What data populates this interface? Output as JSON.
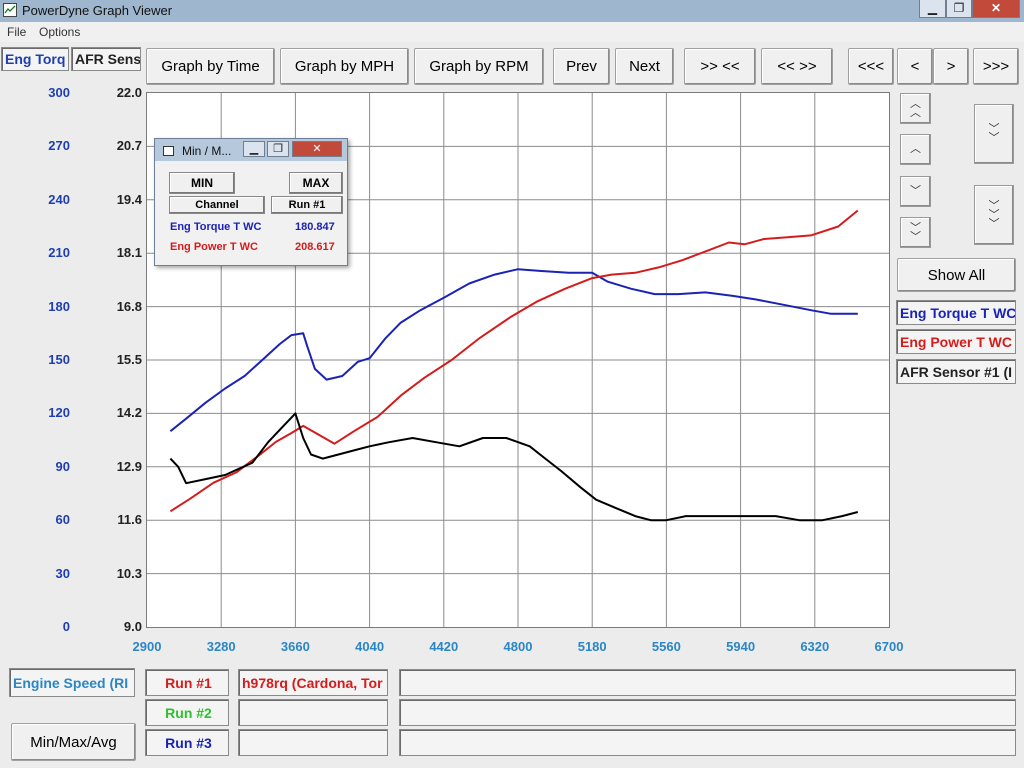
{
  "window": {
    "title": "PowerDyne Graph Viewer",
    "minimize": "▁",
    "restore": "❐",
    "close": "✕"
  },
  "menu": {
    "file": "File",
    "options": "Options"
  },
  "left_labels": {
    "eng_torq": "Eng Torq",
    "afr_sens": "AFR Sens"
  },
  "toolbar": {
    "graph_by_time": "Graph by Time",
    "graph_by_mph": "Graph by MPH",
    "graph_by_rpm": "Graph by RPM",
    "prev": "Prev",
    "next": "Next",
    "zoom_in": ">> <<",
    "zoom_out": "<< >>",
    "scroll_far_left": "<<<",
    "scroll_left": "<",
    "scroll_right": ">",
    "scroll_far_right": ">>>"
  },
  "right_panel": {
    "show_all": "Show All",
    "channels": [
      "Eng Torque T WC",
      "Eng Power T WC",
      "AFR Sensor #1 (I"
    ],
    "scroll_icons": [
      "double-up-chevron-icon",
      "up-chevron-icon",
      "down-chevron-icon",
      "double-down-chevron-icon"
    ]
  },
  "bottom": {
    "x_channel": "Engine Speed (RI",
    "run1": "Run #1",
    "run2": "Run #2",
    "run3": "Run #3",
    "run1_name": "h978rq (Cardona, Tor",
    "minmaxavg": "Min/Max/Avg"
  },
  "minmax_popup": {
    "title": "Min / M...",
    "min_label": "MIN",
    "max_label": "MAX",
    "channel_header": "Channel",
    "run_header": "Run #1",
    "rows": [
      {
        "channel": "Eng Torque T WC",
        "value": "180.847"
      },
      {
        "channel": "Eng Power T WC",
        "value": "208.617"
      }
    ]
  },
  "colors": {
    "torque": "#1a23b4",
    "power": "#d41c1c",
    "afr": "#000000",
    "tick_blue": "#1f3fb0",
    "tick_x": "#2a86c4",
    "run2": "#2ec02e"
  },
  "chart_data": {
    "type": "line",
    "x_ticks": [
      "2900",
      "3280",
      "3660",
      "4040",
      "4420",
      "4800",
      "5180",
      "5560",
      "5940",
      "6320",
      "6700"
    ],
    "xlim": [
      2900,
      6700
    ],
    "y_left_ticks": [
      "300",
      "270",
      "240",
      "210",
      "180",
      "150",
      "120",
      "90",
      "60",
      "30",
      "0"
    ],
    "y_left_lim": [
      0,
      300
    ],
    "y_right_ticks": [
      "22.0",
      "20.7",
      "19.4",
      "18.1",
      "16.8",
      "15.5",
      "14.2",
      "12.9",
      "11.6",
      "10.3",
      "9.0"
    ],
    "y_right_lim": [
      9.0,
      22.0
    ],
    "grid": true,
    "series": [
      {
        "name": "Eng Torque T WC",
        "axis": "left",
        "x": [
          3020,
          3100,
          3200,
          3300,
          3400,
          3500,
          3580,
          3640,
          3700,
          3720,
          3760,
          3820,
          3900,
          3980,
          4040,
          4120,
          4200,
          4300,
          4420,
          4550,
          4680,
          4800,
          4920,
          5060,
          5180,
          5260,
          5380,
          5500,
          5620,
          5760,
          5900,
          6020,
          6160,
          6300,
          6400,
          6540
        ],
        "y": [
          110,
          117,
          126,
          134,
          141,
          151,
          159,
          164,
          165,
          158,
          145,
          139,
          141,
          149,
          151,
          162,
          171,
          178,
          185,
          193,
          198,
          201,
          200,
          199,
          199,
          194,
          190,
          187,
          187,
          188,
          186,
          184,
          181,
          178,
          176,
          176
        ]
      },
      {
        "name": "Eng Power T WC",
        "axis": "left",
        "x": [
          3020,
          3120,
          3240,
          3360,
          3480,
          3560,
          3640,
          3700,
          3780,
          3860,
          3960,
          4080,
          4200,
          4320,
          4460,
          4600,
          4760,
          4900,
          5040,
          5180,
          5280,
          5400,
          5520,
          5640,
          5760,
          5880,
          5960,
          6060,
          6180,
          6300,
          6440,
          6540
        ],
        "y": [
          65,
          72,
          81,
          87,
          97,
          104,
          109,
          113,
          108,
          103,
          110,
          118,
          130,
          140,
          150,
          162,
          174,
          183,
          190,
          196,
          198,
          199,
          202,
          206,
          211,
          216,
          215,
          218,
          219,
          220,
          225,
          234
        ]
      },
      {
        "name": "AFR Sensor #1 (I",
        "axis": "right",
        "x": [
          3020,
          3060,
          3100,
          3200,
          3300,
          3440,
          3520,
          3600,
          3660,
          3700,
          3740,
          3800,
          3880,
          3960,
          4040,
          4140,
          4260,
          4380,
          4500,
          4620,
          4740,
          4860,
          4940,
          5020,
          5120,
          5200,
          5300,
          5400,
          5480,
          5560,
          5660,
          5800,
          5960,
          6120,
          6240,
          6360,
          6460,
          6540
        ],
        "y": [
          13.1,
          12.9,
          12.5,
          12.6,
          12.7,
          13.0,
          13.5,
          13.9,
          14.2,
          13.6,
          13.2,
          13.1,
          13.2,
          13.3,
          13.4,
          13.5,
          13.6,
          13.5,
          13.4,
          13.6,
          13.6,
          13.4,
          13.1,
          12.8,
          12.4,
          12.1,
          11.9,
          11.7,
          11.6,
          11.6,
          11.7,
          11.7,
          11.7,
          11.7,
          11.6,
          11.6,
          11.7,
          11.8
        ]
      }
    ]
  }
}
